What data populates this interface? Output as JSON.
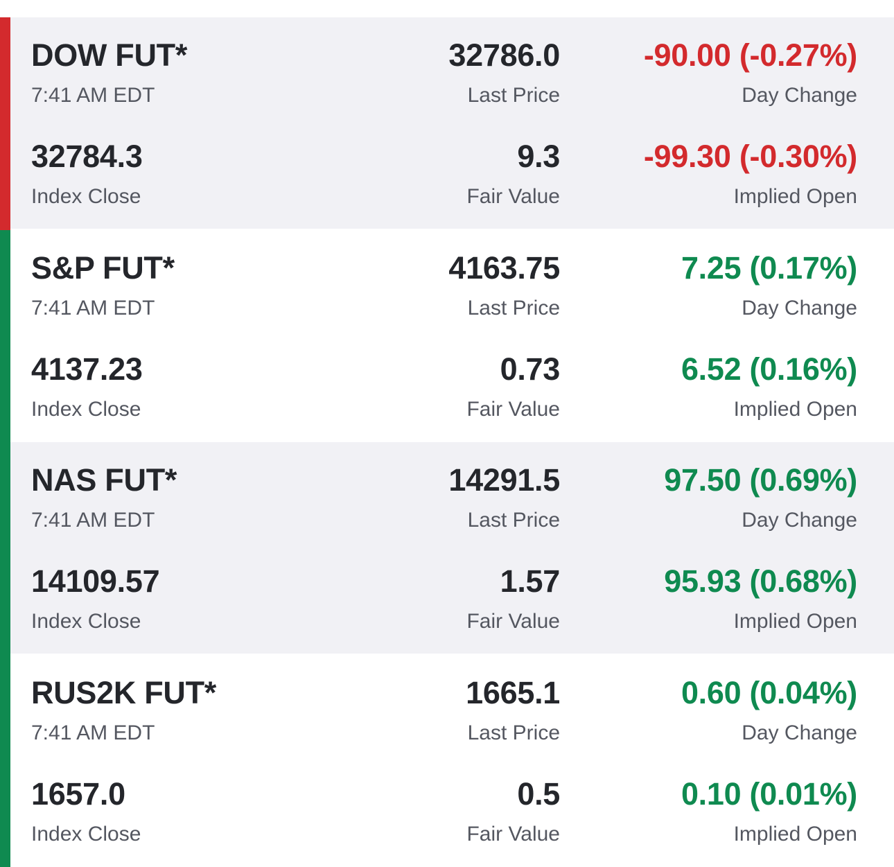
{
  "colors": {
    "negative": "#d32a2d",
    "positive": "#0f8a50",
    "shaded_row": "#f1f1f5"
  },
  "rows": [
    {
      "name": "DOW FUT*",
      "time": "7:41 AM EDT",
      "last_price": "32786.0",
      "last_price_label": "Last Price",
      "day_change": "-90.00 (-0.27%)",
      "day_change_label": "Day Change",
      "index_close": "32784.3",
      "index_close_label": "Index Close",
      "fair_value": "9.3",
      "fair_value_label": "Fair Value",
      "implied_open": "-99.30 (-0.30%)",
      "implied_open_label": "Implied Open",
      "direction": "negative"
    },
    {
      "name": "S&P FUT*",
      "time": "7:41 AM EDT",
      "last_price": "4163.75",
      "last_price_label": "Last Price",
      "day_change": "7.25 (0.17%)",
      "day_change_label": "Day Change",
      "index_close": "4137.23",
      "index_close_label": "Index Close",
      "fair_value": "0.73",
      "fair_value_label": "Fair Value",
      "implied_open": "6.52 (0.16%)",
      "implied_open_label": "Implied Open",
      "direction": "positive"
    },
    {
      "name": "NAS FUT*",
      "time": "7:41 AM EDT",
      "last_price": "14291.5",
      "last_price_label": "Last Price",
      "day_change": "97.50 (0.69%)",
      "day_change_label": "Day Change",
      "index_close": "14109.57",
      "index_close_label": "Index Close",
      "fair_value": "1.57",
      "fair_value_label": "Fair Value",
      "implied_open": "95.93 (0.68%)",
      "implied_open_label": "Implied Open",
      "direction": "positive"
    },
    {
      "name": "RUS2K FUT*",
      "time": "7:41 AM EDT",
      "last_price": "1665.1",
      "last_price_label": "Last Price",
      "day_change": "0.60 (0.04%)",
      "day_change_label": "Day Change",
      "index_close": "1657.0",
      "index_close_label": "Index Close",
      "fair_value": "0.5",
      "fair_value_label": "Fair Value",
      "implied_open": "0.10 (0.01%)",
      "implied_open_label": "Implied Open",
      "direction": "positive"
    }
  ]
}
